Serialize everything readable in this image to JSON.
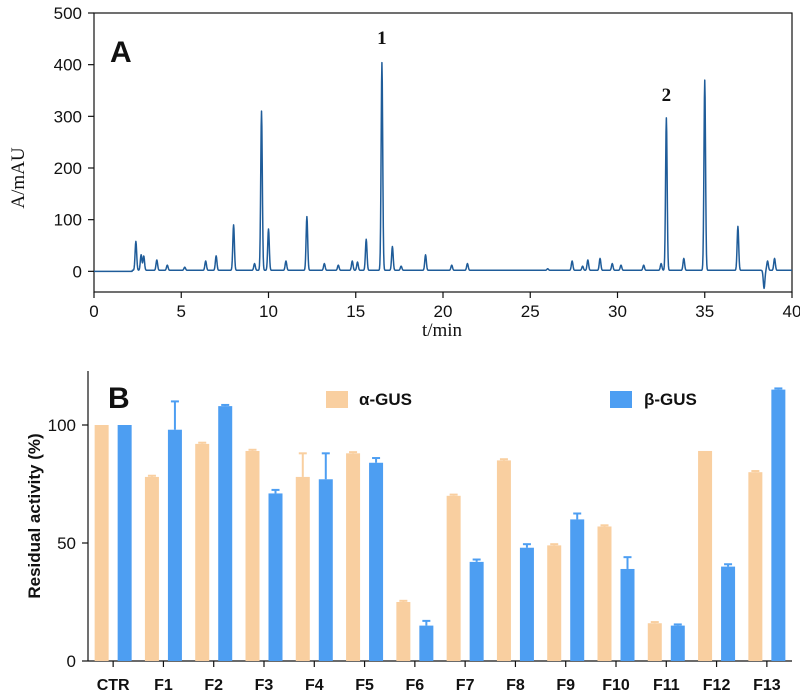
{
  "chart_data": [
    {
      "type": "line",
      "panel_label": "A",
      "xlabel": "t/min",
      "ylabel": "A/mAU",
      "xlim": [
        0,
        40
      ],
      "ylim": [
        -40,
        500
      ],
      "xticks": [
        0,
        5,
        10,
        15,
        20,
        25,
        30,
        35,
        40
      ],
      "yticks": [
        0,
        100,
        200,
        300,
        400,
        500
      ],
      "line_color": "#1f5c99",
      "baseline": 2,
      "peaks": [
        {
          "x": 2.4,
          "y": 58
        },
        {
          "x": 2.7,
          "y": 32
        },
        {
          "x": 2.85,
          "y": 30
        },
        {
          "x": 3.6,
          "y": 22
        },
        {
          "x": 4.2,
          "y": 12
        },
        {
          "x": 5.2,
          "y": 8
        },
        {
          "x": 6.4,
          "y": 20
        },
        {
          "x": 7.0,
          "y": 30
        },
        {
          "x": 8.0,
          "y": 90
        },
        {
          "x": 9.2,
          "y": 15
        },
        {
          "x": 9.6,
          "y": 310
        },
        {
          "x": 10.0,
          "y": 82
        },
        {
          "x": 11.0,
          "y": 20
        },
        {
          "x": 12.2,
          "y": 106
        },
        {
          "x": 13.2,
          "y": 15
        },
        {
          "x": 14.0,
          "y": 12
        },
        {
          "x": 14.8,
          "y": 20
        },
        {
          "x": 15.1,
          "y": 18
        },
        {
          "x": 15.6,
          "y": 62
        },
        {
          "x": 16.5,
          "y": 404
        },
        {
          "x": 17.1,
          "y": 48
        },
        {
          "x": 17.6,
          "y": 10
        },
        {
          "x": 19.0,
          "y": 32
        },
        {
          "x": 20.5,
          "y": 12
        },
        {
          "x": 21.4,
          "y": 15
        },
        {
          "x": 26.0,
          "y": 5
        },
        {
          "x": 27.4,
          "y": 20
        },
        {
          "x": 28.0,
          "y": 10
        },
        {
          "x": 28.3,
          "y": 22
        },
        {
          "x": 29.0,
          "y": 25
        },
        {
          "x": 29.7,
          "y": 15
        },
        {
          "x": 30.2,
          "y": 12
        },
        {
          "x": 31.5,
          "y": 12
        },
        {
          "x": 32.5,
          "y": 15
        },
        {
          "x": 32.8,
          "y": 297
        },
        {
          "x": 33.8,
          "y": 25
        },
        {
          "x": 35.0,
          "y": 370
        },
        {
          "x": 36.9,
          "y": 87
        },
        {
          "x": 38.4,
          "y": -35
        },
        {
          "x": 38.6,
          "y": 20
        },
        {
          "x": 39.0,
          "y": 25
        }
      ],
      "annotations": [
        {
          "text": "1",
          "x": 16.5,
          "y": 440
        },
        {
          "text": "2",
          "x": 32.8,
          "y": 330
        }
      ]
    },
    {
      "type": "bar",
      "panel_label": "B",
      "ylabel": "Residual activity (%)",
      "xlabel": "",
      "ylim": [
        0,
        120
      ],
      "yticks": [
        0,
        50,
        100
      ],
      "categories": [
        "CTR",
        "F1",
        "F2",
        "F3",
        "F4",
        "F5",
        "F6",
        "F7",
        "F8",
        "F9",
        "F10",
        "F11",
        "F12",
        "F13"
      ],
      "series": [
        {
          "name": "α-GUS",
          "color": "#f9cfa0",
          "values": [
            100,
            78,
            92,
            89,
            78,
            88,
            25,
            70,
            85,
            49,
            57,
            16,
            89,
            80
          ],
          "errors": [
            0,
            0.5,
            0.5,
            0.5,
            10,
            0.5,
            0.5,
            0.5,
            0.5,
            0.5,
            0.5,
            0.5,
            0,
            0.5
          ]
        },
        {
          "name": "β-GUS",
          "color": "#4d9ef2",
          "values": [
            100,
            98,
            108,
            71,
            77,
            84,
            15,
            42,
            48,
            60,
            39,
            15,
            40,
            115
          ],
          "errors": [
            0,
            12,
            0.5,
            1.5,
            11,
            2,
            2,
            1,
            1.5,
            2.5,
            5,
            0.5,
            1,
            0.5
          ]
        }
      ],
      "legend": [
        "α-GUS",
        "β-GUS"
      ]
    }
  ]
}
